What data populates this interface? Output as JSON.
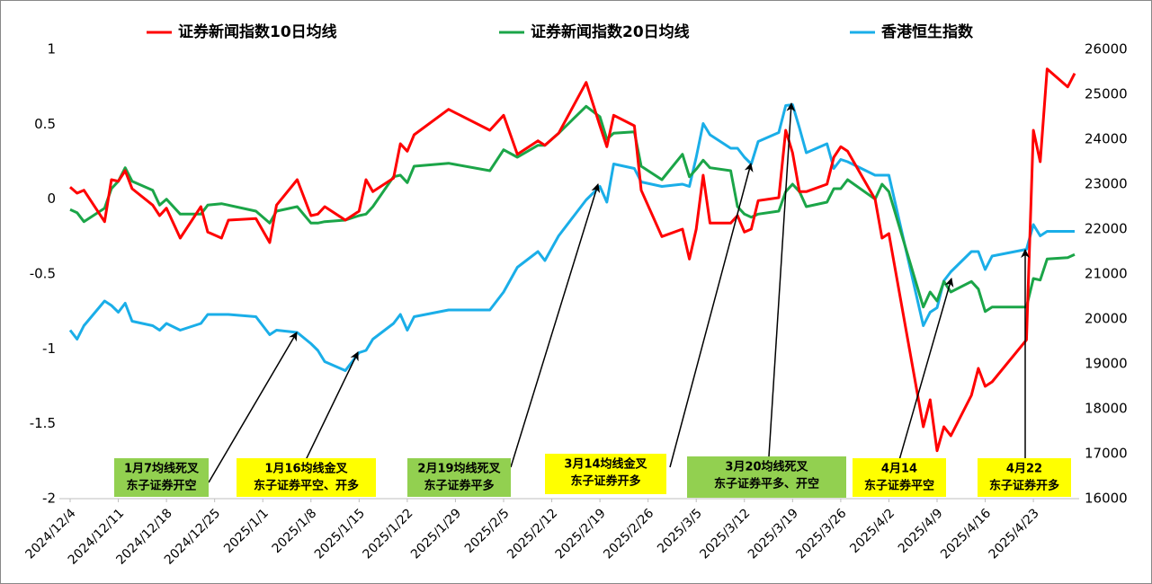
{
  "chart_data": {
    "type": "line",
    "x": [
      "2024/12/4",
      "2024/12/5",
      "2024/12/6",
      "2024/12/9",
      "2024/12/10",
      "2024/12/11",
      "2024/12/12",
      "2024/12/13",
      "2024/12/16",
      "2024/12/17",
      "2024/12/18",
      "2024/12/20",
      "2024/12/23",
      "2024/12/24",
      "2024/12/26",
      "2024/12/27",
      "2024/12/31",
      "2025/1/2",
      "2025/1/3",
      "2025/1/6",
      "2025/1/8",
      "2025/1/9",
      "2025/1/10",
      "2025/1/13",
      "2025/1/15",
      "2025/1/16",
      "2025/1/17",
      "2025/1/20",
      "2025/1/21",
      "2025/1/22",
      "2025/1/23",
      "2025/1/28",
      "2025/2/3",
      "2025/2/5",
      "2025/2/7",
      "2025/2/10",
      "2025/2/11",
      "2025/2/13",
      "2025/2/17",
      "2025/2/19",
      "2025/2/20",
      "2025/2/21",
      "2025/2/24",
      "2025/2/25",
      "2025/2/28",
      "2025/3/3",
      "2025/3/4",
      "2025/3/5",
      "2025/3/6",
      "2025/3/7",
      "2025/3/10",
      "2025/3/11",
      "2025/3/12",
      "2025/3/13",
      "2025/3/14",
      "2025/3/17",
      "2025/3/18",
      "2025/3/19",
      "2025/3/20",
      "2025/3/21",
      "2025/3/24",
      "2025/3/25",
      "2025/3/26",
      "2025/3/27",
      "2025/3/31",
      "2025/4/1",
      "2025/4/2",
      "2025/4/7",
      "2025/4/8",
      "2025/4/9",
      "2025/4/10",
      "2025/4/11",
      "2025/4/14",
      "2025/4/15",
      "2025/4/16",
      "2025/4/17",
      "2025/4/22",
      "2025/4/23",
      "2025/4/24",
      "2025/4/25",
      "2025/4/28",
      "2025/4/29"
    ],
    "xlim": [
      "2024/12/4",
      "2025/4/29"
    ],
    "xticks": [
      "2024/12/4",
      "2024/12/11",
      "2024/12/18",
      "2024/12/25",
      "2025/1/1",
      "2025/1/8",
      "2025/1/15",
      "2025/1/22",
      "2025/1/29",
      "2025/2/5",
      "2025/2/12",
      "2025/2/19",
      "2025/2/26",
      "2025/3/5",
      "2025/3/12",
      "2025/3/19",
      "2025/3/26",
      "2025/4/2",
      "2025/4/9",
      "2025/4/16",
      "2025/4/23"
    ],
    "ylim": [
      -2,
      1
    ],
    "yticks": [
      1,
      0.5,
      0,
      -0.5,
      -1,
      -1.5,
      -2
    ],
    "y2lim": [
      16000,
      26000
    ],
    "y2ticks": [
      26000,
      25000,
      24000,
      23000,
      22000,
      21000,
      20000,
      19000,
      18000,
      17000,
      16000
    ],
    "series": [
      {
        "name": "证券新闻指数10日均线",
        "color": "#ff0000",
        "values": [
          0.08,
          0.04,
          0.06,
          -0.15,
          0.13,
          0.12,
          0.19,
          0.07,
          -0.04,
          -0.11,
          -0.06,
          -0.26,
          -0.05,
          -0.22,
          -0.26,
          -0.14,
          -0.13,
          -0.29,
          -0.04,
          0.13,
          -0.11,
          -0.1,
          -0.05,
          -0.14,
          -0.08,
          0.13,
          0.05,
          0.14,
          0.37,
          0.32,
          0.43,
          0.6,
          0.46,
          0.56,
          0.3,
          0.39,
          0.36,
          0.44,
          0.78,
          0.49,
          0.35,
          0.56,
          0.49,
          0.06,
          -0.25,
          -0.2,
          -0.4,
          -0.2,
          0.16,
          -0.16,
          -0.16,
          -0.11,
          -0.22,
          -0.2,
          -0.01,
          0.01,
          0.46,
          0.31,
          0.05,
          0.05,
          0.1,
          0.28,
          0.35,
          0.32,
          0,
          -0.26,
          -0.23,
          -1.52,
          -1.34,
          -1.68,
          -1.52,
          -1.58,
          -1.31,
          -1.13,
          -1.25,
          -1.22,
          -0.94,
          0.46,
          0.25,
          0.87,
          0.75,
          0.84
        ]
      },
      {
        "name": "证券新闻指数20日均线",
        "color": "#1ba548",
        "values": [
          -0.07,
          -0.09,
          -0.15,
          -0.06,
          0.07,
          0.12,
          0.21,
          0.12,
          0.06,
          -0.04,
          0,
          -0.1,
          -0.1,
          -0.04,
          -0.03,
          -0.04,
          -0.08,
          -0.16,
          -0.08,
          -0.05,
          -0.16,
          -0.16,
          -0.15,
          -0.14,
          -0.11,
          -0.1,
          -0.05,
          0.15,
          0.16,
          0.11,
          0.22,
          0.24,
          0.19,
          0.33,
          0.28,
          0.36,
          0.36,
          0.44,
          0.62,
          0.55,
          0.4,
          0.44,
          0.45,
          0.22,
          0.13,
          0.3,
          0.15,
          0.2,
          0.26,
          0.21,
          0.19,
          -0.05,
          -0.1,
          -0.12,
          -0.1,
          -0.08,
          0.05,
          0.1,
          0.05,
          -0.05,
          -0.02,
          0.07,
          0.07,
          0.13,
          0,
          0.1,
          0.05,
          -0.72,
          -0.62,
          -0.68,
          -0.55,
          -0.62,
          -0.55,
          -0.6,
          -0.75,
          -0.72,
          -0.72,
          -0.53,
          -0.54,
          -0.4,
          -0.39,
          -0.37
        ]
      },
      {
        "name": "香港恒生指数",
        "color": "#1aaee8",
        "axis": "y2",
        "values": [
          19750,
          19550,
          19850,
          20400,
          20300,
          20150,
          20350,
          19950,
          19850,
          19750,
          19900,
          19750,
          19900,
          20100,
          20100,
          20100,
          20050,
          19650,
          19750,
          19700,
          19450,
          19300,
          19050,
          18850,
          19250,
          19300,
          19550,
          19900,
          20100,
          19750,
          20050,
          20200,
          20200,
          20600,
          21150,
          21500,
          21300,
          21850,
          22650,
          22950,
          22600,
          23450,
          23350,
          23050,
          22950,
          23000,
          22950,
          23600,
          24350,
          24100,
          23800,
          23800,
          23600,
          23450,
          23950,
          24150,
          24750,
          24770,
          24250,
          23700,
          23900,
          23350,
          23550,
          23500,
          23200,
          23200,
          23200,
          19850,
          20150,
          20250,
          20850,
          21050,
          21500,
          21500,
          21100,
          21400,
          21550,
          22100,
          21850,
          21950,
          21950,
          21950
        ]
      }
    ],
    "annotations": [
      {
        "lines": [
          "1月7均线死叉",
          "东子证券开空"
        ],
        "color": "#92d050"
      },
      {
        "lines": [
          "1月16均线金叉",
          "东子证券平空、开多"
        ],
        "color": "#ffff00"
      },
      {
        "lines": [
          "2月19均线死叉",
          "东子证券平多"
        ],
        "color": "#92d050"
      },
      {
        "lines": [
          "3月14均线金叉",
          "东子证券开多"
        ],
        "color": "#ffff00"
      },
      {
        "lines": [
          "3月20均线死叉",
          "东子证券平多、开空"
        ],
        "color": "#92d050"
      },
      {
        "lines": [
          "4月14",
          "东子证券平空"
        ],
        "color": "#ffff00"
      },
      {
        "lines": [
          "4月22",
          "东子证券开多"
        ],
        "color": "#ffff00"
      }
    ]
  }
}
